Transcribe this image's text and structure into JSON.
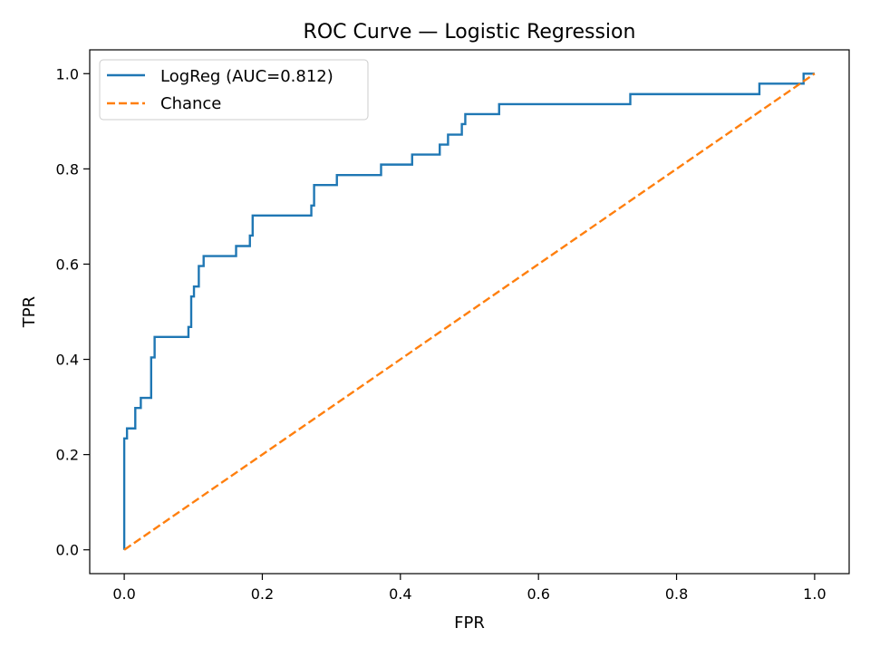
{
  "chart_data": {
    "type": "line",
    "title": "ROC Curve — Logistic Regression",
    "xlabel": "FPR",
    "ylabel": "TPR",
    "xlim": [
      -0.05,
      1.05
    ],
    "ylim": [
      -0.05,
      1.05
    ],
    "xticks": [
      0.0,
      0.2,
      0.4,
      0.6,
      0.8,
      1.0
    ],
    "yticks": [
      0.0,
      0.2,
      0.4,
      0.6,
      0.8,
      1.0
    ],
    "xtick_labels": [
      "0.0",
      "0.2",
      "0.4",
      "0.6",
      "0.8",
      "1.0"
    ],
    "ytick_labels": [
      "0.0",
      "0.2",
      "0.4",
      "0.6",
      "0.8",
      "1.0"
    ],
    "grid": false,
    "legend_position": "top-left",
    "series": [
      {
        "name": "LogReg (AUC=0.812)",
        "color": "#1f77b4",
        "style": "solid",
        "x": [
          0.0,
          0.0,
          0.004,
          0.004,
          0.016,
          0.016,
          0.024,
          0.024,
          0.039,
          0.039,
          0.044,
          0.044,
          0.093,
          0.093,
          0.097,
          0.097,
          0.101,
          0.101,
          0.108,
          0.108,
          0.115,
          0.115,
          0.162,
          0.162,
          0.182,
          0.182,
          0.186,
          0.186,
          0.271,
          0.271,
          0.275,
          0.275,
          0.308,
          0.308,
          0.372,
          0.372,
          0.417,
          0.417,
          0.457,
          0.457,
          0.469,
          0.469,
          0.489,
          0.489,
          0.494,
          0.494,
          0.543,
          0.543,
          0.733,
          0.733,
          0.92,
          0.92,
          0.984,
          0.984,
          1.0
        ],
        "y": [
          0.0,
          0.234,
          0.234,
          0.255,
          0.255,
          0.298,
          0.298,
          0.319,
          0.319,
          0.404,
          0.404,
          0.447,
          0.447,
          0.468,
          0.468,
          0.532,
          0.532,
          0.553,
          0.553,
          0.596,
          0.596,
          0.617,
          0.617,
          0.638,
          0.638,
          0.66,
          0.66,
          0.702,
          0.702,
          0.723,
          0.723,
          0.766,
          0.766,
          0.787,
          0.787,
          0.809,
          0.809,
          0.83,
          0.83,
          0.851,
          0.851,
          0.872,
          0.872,
          0.894,
          0.894,
          0.915,
          0.915,
          0.936,
          0.936,
          0.957,
          0.957,
          0.979,
          0.979,
          1.0,
          1.0
        ]
      },
      {
        "name": "Chance",
        "color": "#ff7f0e",
        "style": "dashed",
        "x": [
          0.0,
          1.0
        ],
        "y": [
          0.0,
          1.0
        ]
      }
    ]
  }
}
